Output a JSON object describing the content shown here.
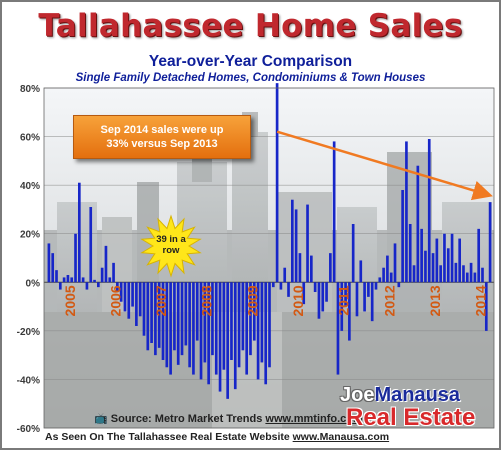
{
  "header": {
    "title": "Tallahassee Home Sales",
    "subtitle": "Year-over-Year Comparison",
    "subtitle2": "Single Family Detached Homes, Condominiums & Town Houses"
  },
  "callout": {
    "line1": "Sep 2014 sales were up",
    "line2": "33% versus Sep 2013"
  },
  "starburst": {
    "line1": "39 in a",
    "line2": "row"
  },
  "footer": {
    "source_prefix": "Source:  Metro Market Trends",
    "source_url": "www.mmtinfo.com",
    "asseen_prefix": "As Seen On The Tallahassee Real Estate Website",
    "asseen_url": "www.Manausa.com"
  },
  "logo": {
    "joe": "Joe",
    "manausa": "Manausa",
    "realestate": "Real Estate"
  },
  "colors": {
    "bar": "#1726c8",
    "title": "#c0282e",
    "trend": "#f07a22",
    "year_label": "#d25a14",
    "callout": "#f0871c",
    "starburst": "#ffe61a"
  },
  "chart_data": {
    "type": "bar",
    "x_start": "2005-01",
    "x_end": "2014-09",
    "interval": "month",
    "ylim": [
      -60,
      80
    ],
    "yticks": [
      "-60%",
      "-40%",
      "-20%",
      "0%",
      "20%",
      "40%",
      "60%",
      "80%"
    ],
    "xticks": [
      "2005",
      "2006",
      "2007",
      "2008",
      "2009",
      "2010",
      "2011",
      "2012",
      "2013",
      "2014"
    ],
    "grid": true,
    "legend": false,
    "series": [
      {
        "values": [
          16,
          12,
          5,
          -3,
          2,
          3,
          2,
          20,
          41,
          2,
          -3,
          31,
          1,
          -2,
          6,
          15,
          2,
          8,
          -4,
          -8,
          -12,
          -15,
          -10,
          -18,
          -14,
          -22,
          -28,
          -25,
          -30,
          -27,
          -32,
          -35,
          -38,
          -28,
          -34,
          -30,
          -26,
          -35,
          -38,
          -24,
          -40,
          -33,
          -42,
          -30,
          -38,
          -45,
          -36,
          -48,
          -32,
          -44,
          -35,
          -28,
          -38,
          -30,
          -24,
          -40,
          -33,
          -42,
          -35,
          -2,
          82,
          -3,
          6,
          -6,
          34,
          30,
          12,
          -9,
          32,
          11,
          -4,
          -15,
          -12,
          -8,
          12,
          58,
          -38,
          -20,
          -10,
          -24,
          24,
          -14,
          9,
          -12,
          -6,
          -16,
          -3,
          2,
          6,
          11,
          4,
          16,
          -2,
          38,
          58,
          24,
          7,
          48,
          22,
          13,
          59,
          12,
          18,
          7,
          20,
          14,
          20,
          8,
          18,
          7,
          4,
          8,
          4,
          22,
          6,
          -20,
          33
        ]
      }
    ],
    "trendline": {
      "from": [
        "2010-01",
        62
      ],
      "to": [
        "2014-09",
        36
      ]
    }
  }
}
